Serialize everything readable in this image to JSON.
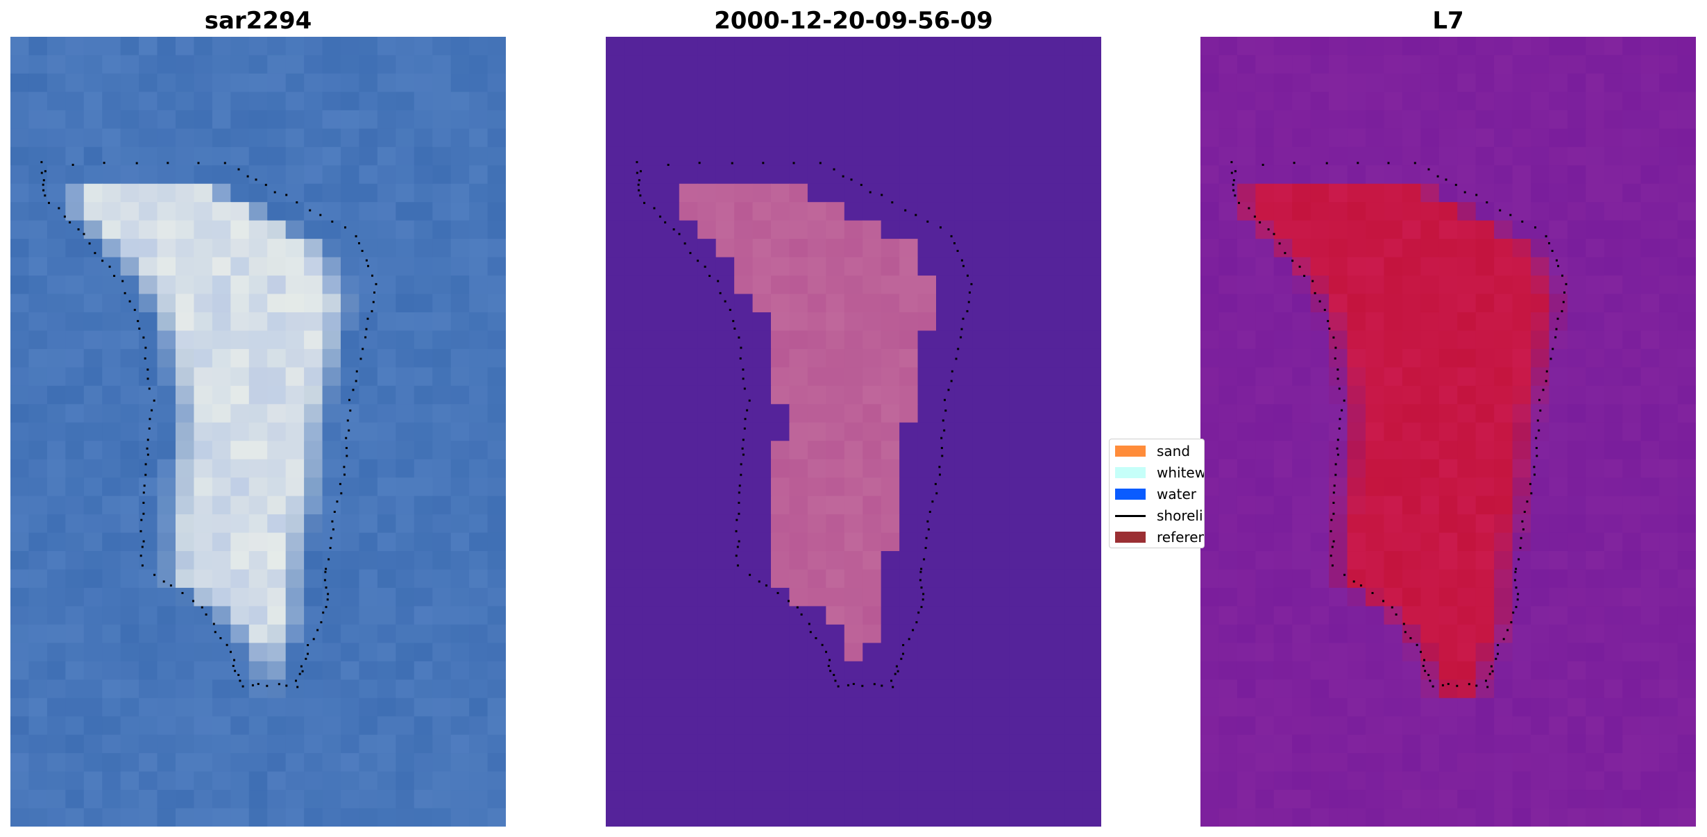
{
  "panels": [
    {
      "title": "sar2294"
    },
    {
      "title": "2000-12-20-09-56-09"
    },
    {
      "title": "L7"
    }
  ],
  "legend": {
    "items": [
      {
        "label": "sand",
        "type": "patch",
        "color": "#ff8c3a"
      },
      {
        "label": "whitewater",
        "type": "patch",
        "color": "#c6fff9"
      },
      {
        "label": "water",
        "type": "patch",
        "color": "#0a5cff"
      },
      {
        "label": "shoreline",
        "type": "line",
        "color": "#000000"
      },
      {
        "label": "reference",
        "type": "patch",
        "color": "#9b2f33"
      }
    ]
  },
  "colors": {
    "rgb_water": "#3f6fb4",
    "classified_background": "#55239a",
    "classified_island": "#b85a95",
    "mndwi_background": "#7a1e9c",
    "mndwi_island": "#c4143e"
  }
}
